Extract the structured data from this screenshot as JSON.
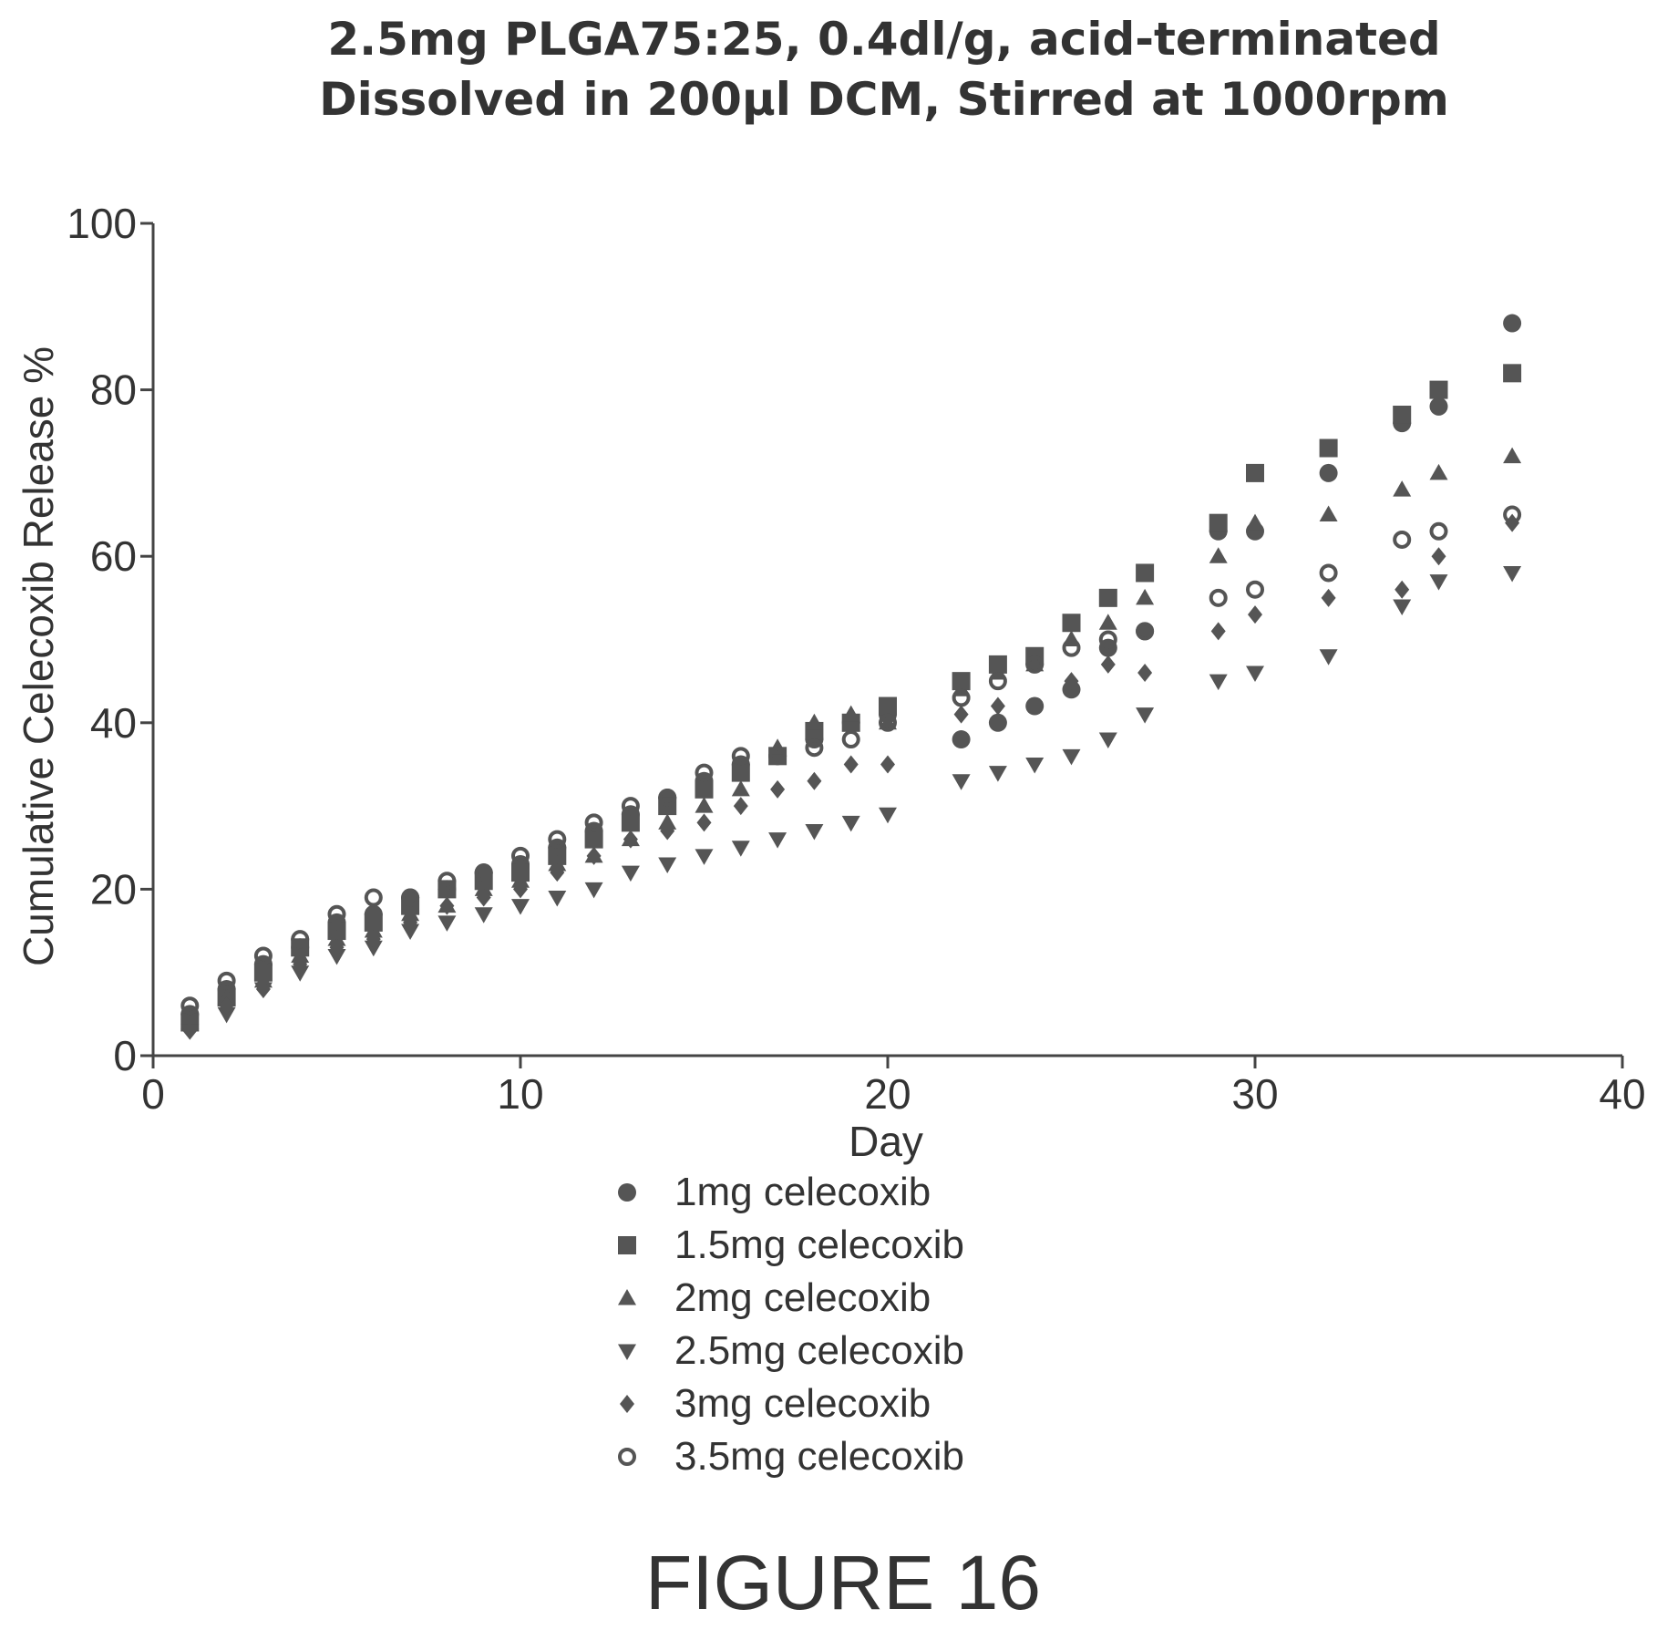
{
  "chart_data": {
    "type": "scatter",
    "title_lines": [
      "2.5mg PLGA75:25, 0.4dl/g, acid-terminated",
      "Dissolved in 200µl DCM, Stirred at 1000rpm"
    ],
    "xlabel": "Day",
    "ylabel": "Cumulative Celecoxib Release %",
    "xlim": [
      0,
      40
    ],
    "ylim": [
      0,
      100
    ],
    "xticks": [
      0,
      10,
      20,
      30,
      40
    ],
    "yticks": [
      0,
      20,
      40,
      60,
      80,
      100
    ],
    "grid": false,
    "legend_position": "bottom",
    "x": [
      1,
      2,
      3,
      4,
      5,
      6,
      7,
      8,
      9,
      10,
      11,
      12,
      13,
      14,
      15,
      16,
      17,
      18,
      19,
      20,
      22,
      23,
      24,
      25,
      26,
      27,
      29,
      30,
      32,
      34,
      35,
      37
    ],
    "series": [
      {
        "name": "1mg celecoxib",
        "marker": "circle",
        "values": [
          5,
          8,
          11,
          13,
          16,
          17,
          19,
          20,
          22,
          23,
          25,
          27,
          29,
          31,
          33,
          35,
          36,
          38,
          40,
          41,
          38,
          40,
          42,
          44,
          49,
          51,
          63,
          63,
          70,
          76,
          78,
          88
        ]
      },
      {
        "name": "1.5mg celecoxib",
        "marker": "square",
        "values": [
          4,
          7,
          10,
          13,
          15,
          16,
          18,
          20,
          21,
          22,
          24,
          26,
          28,
          30,
          32,
          34,
          36,
          39,
          40,
          42,
          45,
          47,
          48,
          52,
          55,
          58,
          64,
          70,
          73,
          77,
          80,
          82
        ]
      },
      {
        "name": "2mg celecoxib",
        "marker": "triangle-up",
        "values": [
          4,
          7,
          9,
          12,
          14,
          15,
          17,
          18,
          20,
          21,
          23,
          24,
          26,
          28,
          30,
          32,
          37,
          40,
          41,
          40,
          44,
          46,
          47,
          50,
          52,
          55,
          60,
          64,
          65,
          68,
          70,
          72
        ]
      },
      {
        "name": "2.5mg celecoxib",
        "marker": "triangle-down",
        "values": [
          3,
          5,
          8,
          10,
          12,
          13,
          15,
          16,
          17,
          18,
          19,
          20,
          22,
          23,
          24,
          25,
          26,
          27,
          28,
          29,
          33,
          34,
          35,
          36,
          38,
          41,
          45,
          46,
          48,
          54,
          57,
          58
        ]
      },
      {
        "name": "3mg celecoxib",
        "marker": "diamond",
        "values": [
          3,
          6,
          8,
          11,
          13,
          14,
          16,
          18,
          19,
          20,
          22,
          24,
          26,
          27,
          28,
          30,
          32,
          33,
          35,
          35,
          41,
          42,
          42,
          45,
          47,
          46,
          51,
          53,
          55,
          56,
          60,
          64
        ]
      },
      {
        "name": "3.5mg celecoxib",
        "marker": "circle-open",
        "values": [
          6,
          9,
          12,
          14,
          17,
          19,
          19,
          21,
          22,
          24,
          26,
          28,
          30,
          31,
          34,
          36,
          36,
          37,
          38,
          40,
          43,
          45,
          47,
          49,
          50,
          51,
          55,
          56,
          58,
          62,
          63,
          65
        ]
      }
    ],
    "marker_color": "#555555"
  },
  "figure_label": "FIGURE 16"
}
